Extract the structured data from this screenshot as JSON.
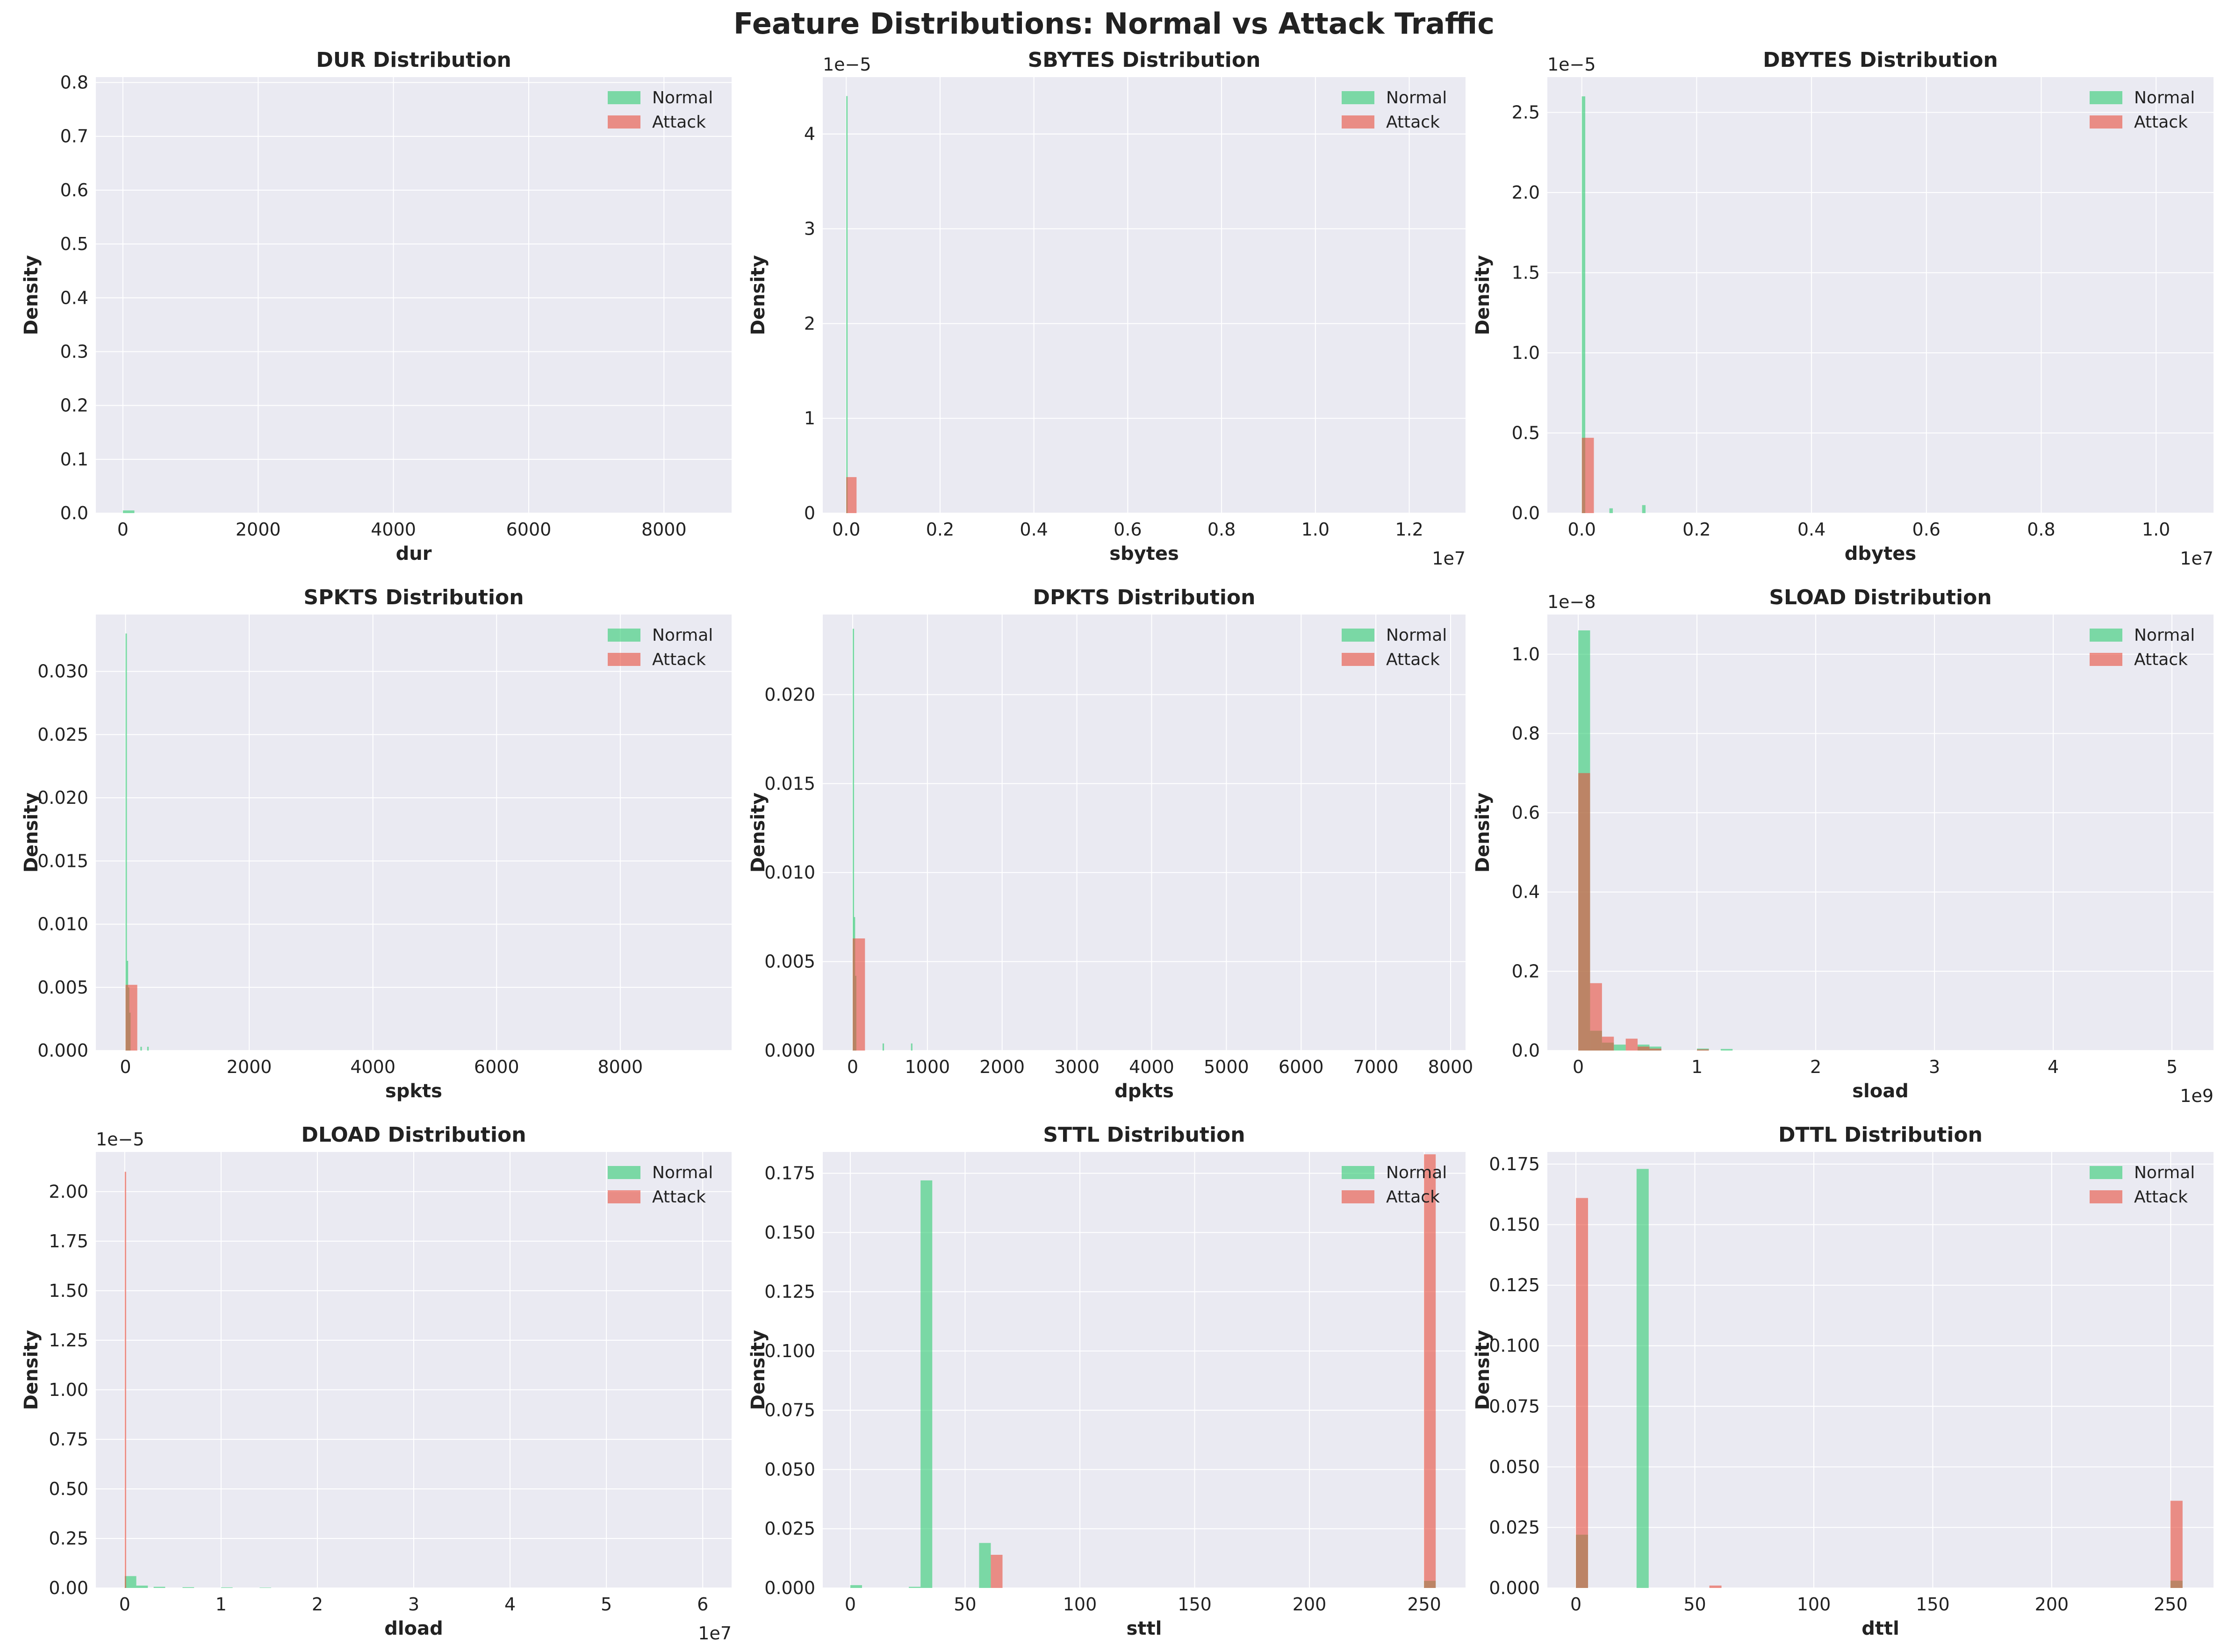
{
  "figure": {
    "title": "Feature Distributions: Normal vs Attack Traffic",
    "colors": {
      "normal": "#2ecc71",
      "attack": "#e74c3c",
      "axes_bg": "#eaeaf2",
      "grid": "#ffffff"
    }
  },
  "legend": {
    "normal": "Normal",
    "attack": "Attack",
    "placement": "top-right"
  },
  "chart_data": [
    {
      "type": "bar",
      "title": "DUR Distribution",
      "xlabel": "dur",
      "ylabel": "Density",
      "xlim": [
        -400,
        9000
      ],
      "ylim": [
        0,
        0.81
      ],
      "xticks": [
        0,
        2000,
        4000,
        6000,
        8000
      ],
      "xtick_labels": [
        "0",
        "2000",
        "4000",
        "6000",
        "8000"
      ],
      "yticks": [
        0,
        0.1,
        0.2,
        0.3,
        0.4,
        0.5,
        0.6,
        0.7,
        0.8
      ],
      "ytick_labels": [
        "0.0",
        "0.1",
        "0.2",
        "0.3",
        "0.4",
        "0.5",
        "0.6",
        "0.7",
        "0.8"
      ],
      "x_offset_label": "",
      "y_offset_label": "",
      "grid": true,
      "series": [
        {
          "name": "Normal",
          "bins": [
            [
              0,
              170,
              0.005
            ]
          ]
        },
        {
          "name": "Attack",
          "bins": []
        }
      ]
    },
    {
      "type": "bar",
      "title": "SBYTES Distribution",
      "xlabel": "sbytes",
      "ylabel": "Density",
      "xlim": [
        -0.05,
        1.32
      ],
      "ylim": [
        0,
        4.6
      ],
      "xticks": [
        0,
        0.2,
        0.4,
        0.6,
        0.8,
        1.0,
        1.2
      ],
      "xtick_labels": [
        "0.0",
        "0.2",
        "0.4",
        "0.6",
        "0.8",
        "1.0",
        "1.2"
      ],
      "yticks": [
        0,
        1,
        2,
        3,
        4
      ],
      "ytick_labels": [
        "0",
        "1",
        "2",
        "3",
        "4"
      ],
      "x_offset_label": "1e7",
      "y_offset_label": "1e−5",
      "grid": true,
      "series": [
        {
          "name": "Normal",
          "bins": [
            [
              0,
              0.003,
              4.4
            ]
          ]
        },
        {
          "name": "Attack",
          "bins": [
            [
              0,
              0.022,
              0.38
            ]
          ]
        }
      ]
    },
    {
      "type": "bar",
      "title": "DBYTES Distribution",
      "xlabel": "dbytes",
      "ylabel": "Density",
      "xlim": [
        -0.06,
        1.1
      ],
      "ylim": [
        0,
        2.72
      ],
      "xticks": [
        0,
        0.2,
        0.4,
        0.6,
        0.8,
        1.0
      ],
      "xtick_labels": [
        "0.0",
        "0.2",
        "0.4",
        "0.6",
        "0.8",
        "1.0"
      ],
      "yticks": [
        0,
        0.5,
        1.0,
        1.5,
        2.0,
        2.5
      ],
      "ytick_labels": [
        "0.0",
        "0.5",
        "1.0",
        "1.5",
        "2.0",
        "2.5"
      ],
      "x_offset_label": "1e7",
      "y_offset_label": "1e−5",
      "grid": true,
      "series": [
        {
          "name": "Normal",
          "bins": [
            [
              0,
              0.006,
              2.6
            ],
            [
              0.048,
              0.006,
              0.03
            ],
            [
              0.105,
              0.006,
              0.05
            ]
          ]
        },
        {
          "name": "Attack",
          "bins": [
            [
              0,
              0.021,
              0.47
            ]
          ]
        }
      ]
    },
    {
      "type": "bar",
      "title": "SPKTS Distribution",
      "xlabel": "spkts",
      "ylabel": "Density",
      "xlim": [
        -480,
        9800
      ],
      "ylim": [
        0,
        0.0345
      ],
      "xticks": [
        0,
        2000,
        4000,
        6000,
        8000
      ],
      "xtick_labels": [
        "0",
        "2000",
        "4000",
        "6000",
        "8000"
      ],
      "yticks": [
        0,
        0.005,
        0.01,
        0.015,
        0.02,
        0.025,
        0.03
      ],
      "ytick_labels": [
        "0.000",
        "0.005",
        "0.010",
        "0.015",
        "0.020",
        "0.025",
        "0.030"
      ],
      "x_offset_label": "",
      "y_offset_label": "",
      "grid": true,
      "series": [
        {
          "name": "Normal",
          "bins": [
            [
              0,
              20,
              0.033
            ],
            [
              20,
              20,
              0.0071
            ],
            [
              40,
              20,
              0.005
            ],
            [
              60,
              20,
              0.003
            ],
            [
              240,
              25,
              0.0003
            ],
            [
              350,
              25,
              0.0003
            ]
          ]
        },
        {
          "name": "Attack",
          "bins": [
            [
              0,
              190,
              0.0052
            ]
          ]
        }
      ]
    },
    {
      "type": "bar",
      "title": "DPKTS Distribution",
      "xlabel": "dpkts",
      "ylabel": "Density",
      "xlim": [
        -400,
        8200
      ],
      "ylim": [
        0,
        0.0245
      ],
      "xticks": [
        0,
        1000,
        2000,
        3000,
        4000,
        5000,
        6000,
        7000,
        8000
      ],
      "xtick_labels": [
        "0",
        "1000",
        "2000",
        "3000",
        "4000",
        "5000",
        "6000",
        "7000",
        "8000"
      ],
      "yticks": [
        0,
        0.005,
        0.01,
        0.015,
        0.02
      ],
      "ytick_labels": [
        "0.000",
        "0.005",
        "0.010",
        "0.015",
        "0.020"
      ],
      "x_offset_label": "",
      "y_offset_label": "",
      "grid": true,
      "series": [
        {
          "name": "Normal",
          "bins": [
            [
              0,
              15,
              0.0237
            ],
            [
              15,
              15,
              0.0075
            ],
            [
              30,
              20,
              0.0042
            ],
            [
              400,
              20,
              0.0004
            ],
            [
              780,
              20,
              0.0004
            ]
          ]
        },
        {
          "name": "Attack",
          "bins": [
            [
              0,
              165,
              0.0063
            ]
          ]
        }
      ]
    },
    {
      "type": "bar",
      "title": "SLOAD Distribution",
      "xlabel": "sload",
      "ylabel": "Density",
      "xlim": [
        -0.26,
        5.35
      ],
      "ylim": [
        0,
        1.1
      ],
      "xticks": [
        0,
        1,
        2,
        3,
        4,
        5
      ],
      "xtick_labels": [
        "0",
        "1",
        "2",
        "3",
        "4",
        "5"
      ],
      "yticks": [
        0,
        0.2,
        0.4,
        0.6,
        0.8,
        1.0
      ],
      "ytick_labels": [
        "0.0",
        "0.2",
        "0.4",
        "0.6",
        "0.8",
        "1.0"
      ],
      "x_offset_label": "1e9",
      "y_offset_label": "1e−8",
      "grid": true,
      "series": [
        {
          "name": "Normal",
          "bins": [
            [
              0,
              0.1,
              1.06
            ],
            [
              0.1,
              0.1,
              0.05
            ],
            [
              0.2,
              0.1,
              0.02
            ],
            [
              0.3,
              0.1,
              0.015
            ],
            [
              0.5,
              0.1,
              0.015
            ],
            [
              0.6,
              0.1,
              0.01
            ],
            [
              1.0,
              0.1,
              0.005
            ],
            [
              1.2,
              0.1,
              0.004
            ]
          ]
        },
        {
          "name": "Attack",
          "bins": [
            [
              0,
              0.1,
              0.7
            ],
            [
              0.1,
              0.1,
              0.17
            ],
            [
              0.2,
              0.1,
              0.035
            ],
            [
              0.4,
              0.1,
              0.03
            ],
            [
              0.5,
              0.1,
              0.01
            ],
            [
              0.6,
              0.1,
              0.005
            ],
            [
              1.0,
              0.1,
              0.003
            ]
          ]
        }
      ]
    },
    {
      "type": "bar",
      "title": "DLOAD Distribution",
      "xlabel": "dload",
      "ylabel": "Density",
      "xlim": [
        -0.3,
        6.3
      ],
      "ylim": [
        0,
        2.2
      ],
      "xticks": [
        0,
        1,
        2,
        3,
        4,
        5,
        6
      ],
      "xtick_labels": [
        "0",
        "1",
        "2",
        "3",
        "4",
        "5",
        "6"
      ],
      "yticks": [
        0,
        0.25,
        0.5,
        0.75,
        1.0,
        1.25,
        1.5,
        1.75,
        2.0
      ],
      "ytick_labels": [
        "0.00",
        "0.25",
        "0.50",
        "0.75",
        "1.00",
        "1.25",
        "1.50",
        "1.75",
        "2.00"
      ],
      "x_offset_label": "1e7",
      "y_offset_label": "1e−5",
      "grid": true,
      "series": [
        {
          "name": "Normal",
          "bins": [
            [
              0,
              0.12,
              0.06
            ],
            [
              0.12,
              0.12,
              0.012
            ],
            [
              0.3,
              0.12,
              0.006
            ],
            [
              0.6,
              0.12,
              0.004
            ],
            [
              1.0,
              0.12,
              0.003
            ],
            [
              1.4,
              0.12,
              0.002
            ]
          ]
        },
        {
          "name": "Attack",
          "bins": [
            [
              0,
              0.012,
              2.1
            ]
          ]
        }
      ]
    },
    {
      "type": "bar",
      "title": "STTL Distribution",
      "xlabel": "sttl",
      "ylabel": "Density",
      "xlim": [
        -12,
        268
      ],
      "ylim": [
        0,
        0.184
      ],
      "xticks": [
        0,
        50,
        100,
        150,
        200,
        250
      ],
      "xtick_labels": [
        "0",
        "50",
        "100",
        "150",
        "200",
        "250"
      ],
      "yticks": [
        0,
        0.025,
        0.05,
        0.075,
        0.1,
        0.125,
        0.15,
        0.175
      ],
      "ytick_labels": [
        "0.000",
        "0.025",
        "0.050",
        "0.075",
        "0.100",
        "0.125",
        "0.150",
        "0.175"
      ],
      "x_offset_label": "",
      "y_offset_label": "",
      "grid": true,
      "series": [
        {
          "name": "Normal",
          "bins": [
            [
              0,
              5.1,
              0.0012
            ],
            [
              25.5,
              5.1,
              0.0005
            ],
            [
              30.6,
              5.1,
              0.172
            ],
            [
              56.1,
              5.1,
              0.019
            ],
            [
              249.9,
              5.1,
              0.003
            ]
          ]
        },
        {
          "name": "Attack",
          "bins": [
            [
              61.2,
              5.1,
              0.014
            ],
            [
              249.9,
              5.1,
              0.183
            ]
          ]
        }
      ]
    },
    {
      "type": "bar",
      "title": "DTTL Distribution",
      "xlabel": "dttl",
      "ylabel": "Density",
      "xlim": [
        -12,
        268
      ],
      "ylim": [
        0,
        0.18
      ],
      "xticks": [
        0,
        50,
        100,
        150,
        200,
        250
      ],
      "xtick_labels": [
        "0",
        "50",
        "100",
        "150",
        "200",
        "250"
      ],
      "yticks": [
        0,
        0.025,
        0.05,
        0.075,
        0.1,
        0.125,
        0.15,
        0.175
      ],
      "ytick_labels": [
        "0.000",
        "0.025",
        "0.050",
        "0.075",
        "0.100",
        "0.125",
        "0.150",
        "0.175"
      ],
      "x_offset_label": "",
      "y_offset_label": "",
      "grid": true,
      "series": [
        {
          "name": "Normal",
          "bins": [
            [
              0,
              5.1,
              0.022
            ],
            [
              25.5,
              5.1,
              0.173
            ],
            [
              249.9,
              5.1,
              0.003
            ]
          ]
        },
        {
          "name": "Attack",
          "bins": [
            [
              0,
              5.1,
              0.161
            ],
            [
              56.1,
              5.1,
              0.001
            ],
            [
              249.9,
              5.1,
              0.036
            ]
          ]
        }
      ]
    }
  ]
}
